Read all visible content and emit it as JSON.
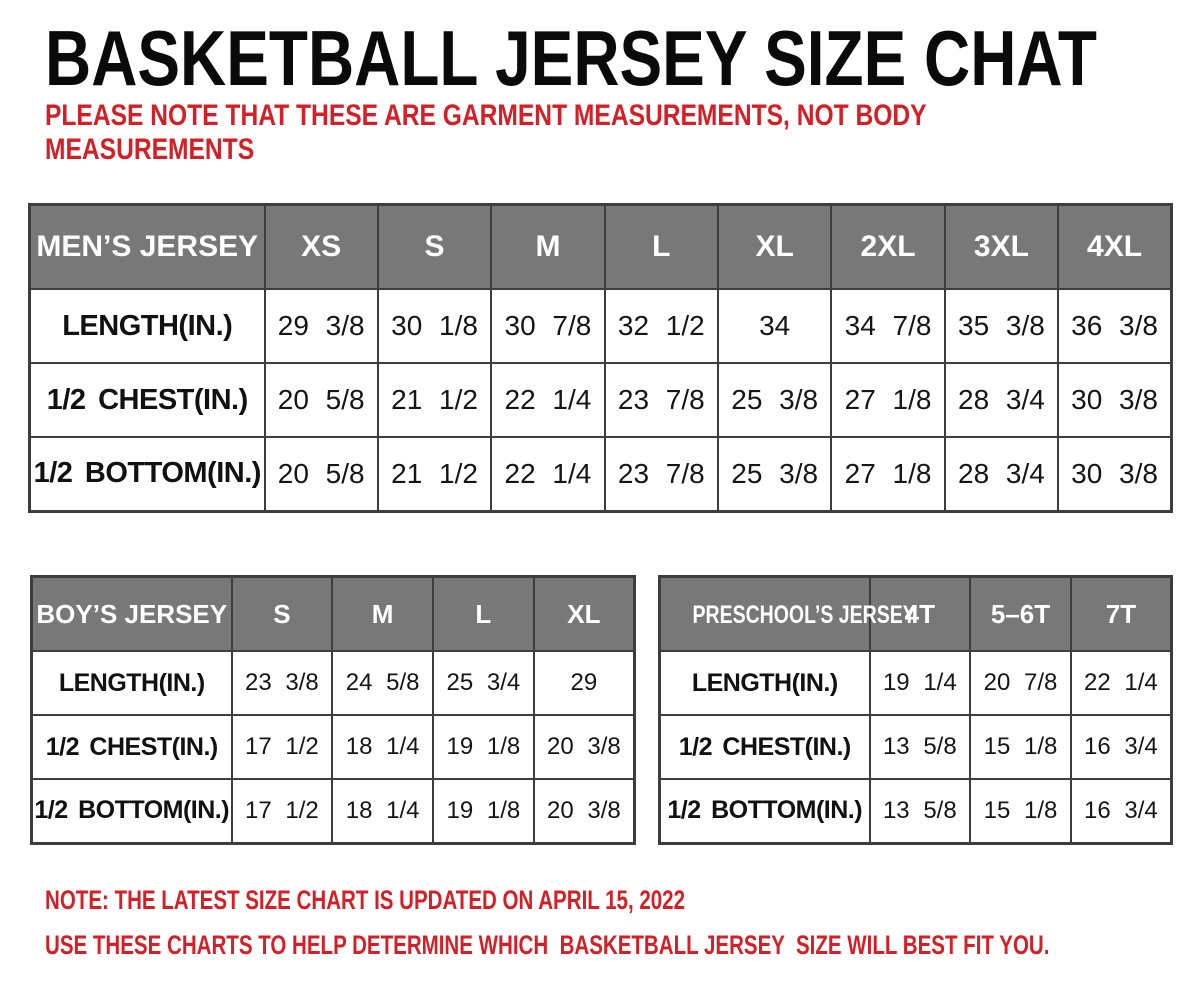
{
  "header": {
    "title": "BASKETBALL JERSEY SIZE CHAT",
    "note_lines": [
      "PLEASE NOTE THAT THESE ARE GARMENT MEASUREMENTS, NOT BODY",
      "MEASUREMENTS"
    ]
  },
  "tables": {
    "mens": {
      "header_label": "MEN’S JERSEY",
      "sizes": [
        "XS",
        "S",
        "M",
        "L",
        "XL",
        "2XL",
        "3XL",
        "4XL"
      ],
      "rows": [
        {
          "label": "LENGTH(IN.)",
          "values": [
            "29 3/8",
            "30 1/8",
            "30 7/8",
            "32 1/2",
            "34",
            "34 7/8",
            "35 3/8",
            "36 3/8"
          ]
        },
        {
          "label": "1/2 CHEST(IN.)",
          "values": [
            "20 5/8",
            "21 1/2",
            "22 1/4",
            "23 7/8",
            "25 3/8",
            "27 1/8",
            "28 3/4",
            "30 3/8"
          ]
        },
        {
          "label": "1/2 BOTTOM(IN.)",
          "values": [
            "20 5/8",
            "21 1/2",
            "22 1/4",
            "23 7/8",
            "25 3/8",
            "27 1/8",
            "28 3/4",
            "30 3/8"
          ]
        }
      ]
    },
    "boys": {
      "header_label": "BOY’S JERSEY",
      "sizes": [
        "S",
        "M",
        "L",
        "XL"
      ],
      "rows": [
        {
          "label": "LENGTH(IN.)",
          "values": [
            "23 3/8",
            "24 5/8",
            "25 3/4",
            "29"
          ]
        },
        {
          "label": "1/2 CHEST(IN.)",
          "values": [
            "17 1/2",
            "18 1/4",
            "19 1/8",
            "20 3/8"
          ]
        },
        {
          "label": "1/2 BOTTOM(IN.)",
          "values": [
            "17 1/2",
            "18 1/4",
            "19 1/8",
            "20 3/8"
          ]
        }
      ]
    },
    "preschool": {
      "header_label": "PRESCHOOL’S JERSEY",
      "sizes": [
        "4T",
        "5–6T",
        "7T"
      ],
      "rows": [
        {
          "label": "LENGTH(IN.)",
          "values": [
            "19 1/4",
            "20 7/8",
            "22 1/4"
          ]
        },
        {
          "label": "1/2 CHEST(IN.)",
          "values": [
            "13 5/8",
            "15 1/8",
            "16 3/4"
          ]
        },
        {
          "label": "1/2 BOTTOM(IN.)",
          "values": [
            "13 5/8",
            "15 1/8",
            "16 3/4"
          ]
        }
      ]
    }
  },
  "footer": {
    "note1": "NOTE: THE LATEST SIZE CHART IS UPDATED ON APRIL 15, 2022",
    "note2": "USE THESE CHARTS TO HELP DETERMINE WHICH  BASKETBALL JERSEY  SIZE WILL BEST FIT YOU."
  },
  "colors": {
    "accent_red": "#d41f26",
    "table_header_gray": "#787878",
    "table_border": "#3d3d3d"
  }
}
